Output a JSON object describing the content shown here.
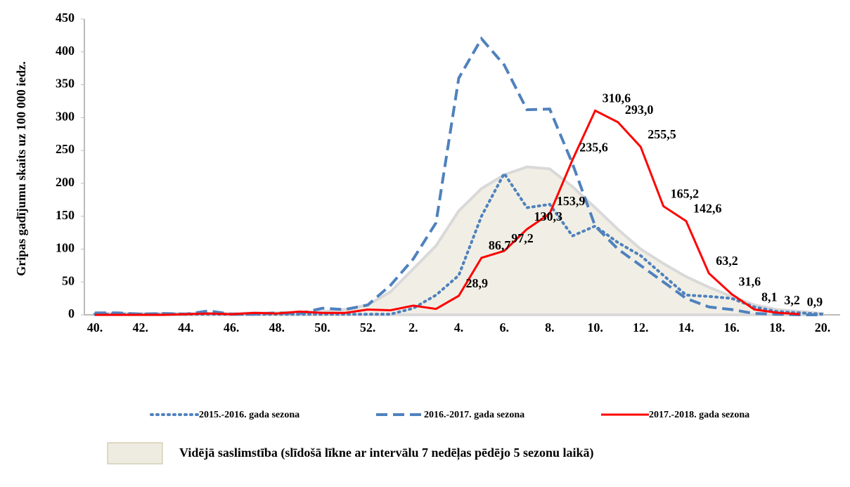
{
  "chart_data": {
    "type": "line",
    "y_axis_label": "Gripas gadījumu skaits uz 100 000 iedz.",
    "categories": [
      "40.",
      null,
      "42.",
      null,
      "44.",
      null,
      "46.",
      null,
      "48.",
      null,
      "50.",
      null,
      "52.",
      null,
      "2.",
      null,
      "4.",
      null,
      "6.",
      null,
      "8.",
      null,
      "10.",
      null,
      "12.",
      null,
      "14.",
      null,
      "16.",
      null,
      "18.",
      null,
      "20."
    ],
    "ylim": [
      0,
      450
    ],
    "yticks": [
      0,
      50,
      100,
      150,
      200,
      250,
      300,
      350,
      400,
      450
    ],
    "series": [
      {
        "name": "2015.-2016. gada sezona",
        "color": "#4f81bd",
        "style": "dotted",
        "values": [
          1,
          1,
          1,
          1,
          1,
          1,
          1,
          1,
          1,
          1,
          1,
          1,
          1,
          1,
          10,
          30,
          60,
          150,
          215,
          163,
          168,
          120,
          135,
          110,
          90,
          60,
          30,
          28,
          25,
          12,
          5,
          3,
          1
        ]
      },
      {
        "name": "2016.-2017. gada sezona",
        "color": "#4f81bd",
        "style": "dashed",
        "values": [
          3,
          3,
          1,
          2,
          1,
          6,
          1,
          1,
          3,
          2,
          10,
          8,
          15,
          45,
          85,
          140,
          360,
          420,
          380,
          312,
          313,
          230,
          135,
          100,
          75,
          50,
          25,
          12,
          8,
          2,
          1,
          0,
          0
        ]
      },
      {
        "name": "2017.-2018. gada sezona",
        "color": "#ff0000",
        "style": "solid",
        "values": [
          0,
          0,
          0,
          0,
          1,
          2,
          1,
          3,
          2,
          5,
          3,
          3,
          8,
          7,
          14,
          9,
          28.9,
          86.7,
          97.2,
          130.3,
          153.9,
          235.6,
          310.6,
          293.0,
          255.5,
          165.2,
          142.6,
          63.2,
          31.6,
          8.1,
          3.2,
          0.9,
          null
        ],
        "value_labels": [
          null,
          null,
          null,
          null,
          null,
          null,
          null,
          null,
          null,
          null,
          null,
          null,
          null,
          null,
          null,
          null,
          "28,9",
          "86,7",
          "97,2",
          "130,3",
          "153,9",
          "235,6",
          "310,6",
          "293,0",
          "255,5",
          "165,2",
          "142,6",
          "63,2",
          "31,6",
          "8,1",
          "3,2",
          "0,9",
          null
        ]
      },
      {
        "name": "Vidējā saslimstība (slīdošā līkne ar intervālu 7 nedēļas pēdējo 5 sezonu laikā)",
        "color": "#eeece1",
        "style": "area",
        "values": [
          2,
          2,
          2,
          2,
          2,
          2,
          2,
          3,
          3,
          4,
          5,
          8,
          15,
          35,
          70,
          105,
          158,
          192,
          213,
          225,
          222,
          195,
          163,
          130,
          100,
          78,
          58,
          42,
          28,
          15,
          8,
          5,
          2
        ]
      }
    ]
  }
}
